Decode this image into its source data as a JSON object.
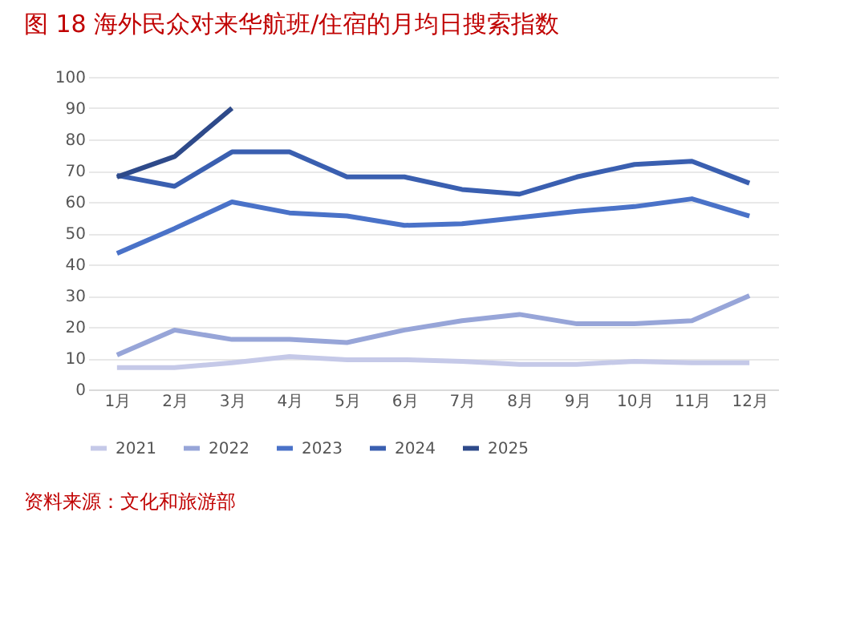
{
  "chart_data": {
    "type": "line",
    "title": "图 18    海外民众对来华航班/住宿的月均日搜索指数",
    "categories": [
      "1月",
      "2月",
      "3月",
      "4月",
      "5月",
      "6月",
      "7月",
      "8月",
      "9月",
      "10月",
      "11月",
      "12月"
    ],
    "series": [
      {
        "name": "2021",
        "color": "#c5c9e8",
        "values": [
          7,
          7,
          8.5,
          10.5,
          9.5,
          9.5,
          9,
          8,
          8,
          9,
          8.5,
          8.5
        ]
      },
      {
        "name": "2022",
        "color": "#97a5d8",
        "values": [
          11,
          19,
          16,
          16,
          15,
          19,
          22,
          24,
          21,
          21,
          22,
          30
        ]
      },
      {
        "name": "2023",
        "color": "#4a72c8",
        "values": [
          43.5,
          51.5,
          60,
          56.5,
          55.5,
          52.5,
          53,
          55,
          57,
          58.5,
          61,
          55.5
        ]
      },
      {
        "name": "2024",
        "color": "#3a5fb0",
        "values": [
          68.5,
          65,
          76,
          76,
          68,
          68,
          64,
          62.5,
          68,
          72,
          73,
          66
        ]
      },
      {
        "name": "2025",
        "color": "#2e4a8a",
        "values": [
          68,
          74.5,
          90,
          null,
          null,
          null,
          null,
          null,
          null,
          null,
          null,
          null
        ]
      }
    ],
    "ylim": [
      0,
      100
    ],
    "yticks": [
      0,
      10,
      20,
      30,
      40,
      50,
      60,
      70,
      80,
      90,
      100
    ],
    "grid": "y",
    "legend": "bottom",
    "marker": "none",
    "line_style": "solid",
    "annotations": [
      "资料来源：文化和旅游部"
    ]
  }
}
